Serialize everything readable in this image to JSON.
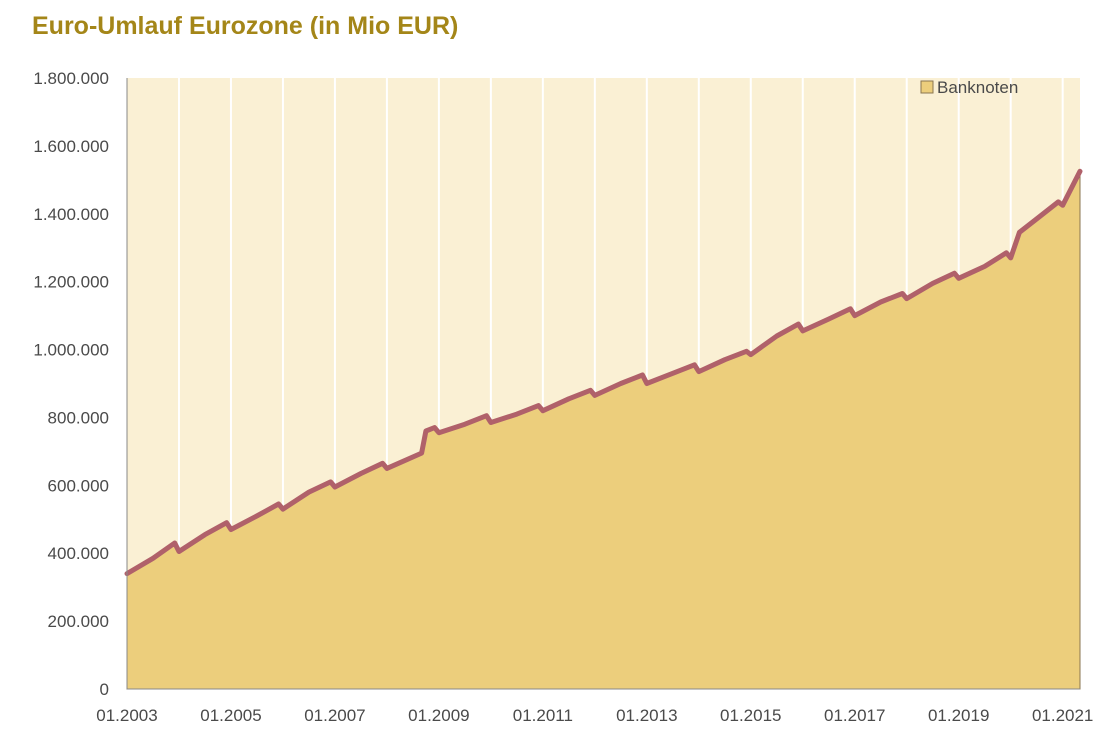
{
  "chart_data": {
    "type": "area",
    "title": "Euro-Umlauf Eurozone (in Mio EUR)",
    "xlabel": "",
    "ylabel": "",
    "ylim": [
      0,
      1800000
    ],
    "y_ticks": [
      0,
      200000,
      400000,
      600000,
      800000,
      1000000,
      1200000,
      1400000,
      1600000,
      1800000
    ],
    "y_tick_labels": [
      "0",
      "200.000",
      "400.000",
      "600.000",
      "800.000",
      "1.000.000",
      "1.200.000",
      "1.400.000",
      "1.600.000",
      "1.800.000"
    ],
    "x_range": [
      "01.2003",
      "05.2021"
    ],
    "x_tick_labels": [
      "01.2003",
      "01.2005",
      "01.2007",
      "01.2009",
      "01.2011",
      "01.2013",
      "01.2015",
      "01.2017",
      "01.2019",
      "01.2021"
    ],
    "legend": {
      "position": "top-right"
    },
    "grid": "vertical",
    "series": [
      {
        "name": "Banknoten",
        "color": "#ecce7c",
        "edge_color": "#b0616a",
        "x": [
          "01.2003",
          "07.2003",
          "12.2003",
          "01.2004",
          "07.2004",
          "12.2004",
          "01.2005",
          "07.2005",
          "12.2005",
          "01.2006",
          "07.2006",
          "12.2006",
          "01.2007",
          "07.2007",
          "12.2007",
          "01.2008",
          "09.2008",
          "10.2008",
          "12.2008",
          "01.2009",
          "07.2009",
          "12.2009",
          "01.2010",
          "07.2010",
          "12.2010",
          "01.2011",
          "07.2011",
          "12.2011",
          "01.2012",
          "07.2012",
          "12.2012",
          "01.2013",
          "07.2013",
          "12.2013",
          "01.2014",
          "07.2014",
          "12.2014",
          "01.2015",
          "07.2015",
          "12.2015",
          "01.2016",
          "07.2016",
          "12.2016",
          "01.2017",
          "07.2017",
          "12.2017",
          "01.2018",
          "07.2018",
          "12.2018",
          "01.2019",
          "07.2019",
          "12.2019",
          "01.2020",
          "03.2020",
          "07.2020",
          "12.2020",
          "01.2021",
          "05.2021"
        ],
        "values": [
          340000,
          385000,
          430000,
          405000,
          455000,
          490000,
          470000,
          510000,
          545000,
          530000,
          580000,
          610000,
          595000,
          635000,
          665000,
          650000,
          695000,
          760000,
          770000,
          755000,
          780000,
          805000,
          785000,
          810000,
          835000,
          820000,
          855000,
          880000,
          865000,
          900000,
          925000,
          900000,
          930000,
          955000,
          935000,
          970000,
          995000,
          985000,
          1040000,
          1075000,
          1055000,
          1090000,
          1120000,
          1100000,
          1140000,
          1165000,
          1150000,
          1195000,
          1225000,
          1210000,
          1245000,
          1285000,
          1270000,
          1345000,
          1385000,
          1435000,
          1425000,
          1525000
        ]
      }
    ]
  }
}
